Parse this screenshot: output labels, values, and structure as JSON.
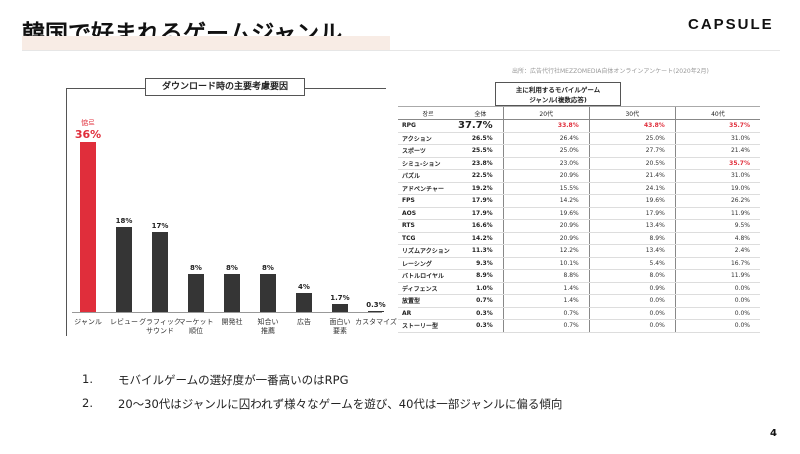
{
  "header": {
    "title": "韓国で好まれるゲームジャンル",
    "logo": "CAPSULE"
  },
  "left_chart": {
    "title": "ダウンロード時の主要考慮要因",
    "top_label": "惦르",
    "accent": "#e02e3b",
    "bar_color": "#353535",
    "chart_data": {
      "type": "bar",
      "title": "ダウンロード時の主要考慮要因",
      "categories": [
        "ジャンル",
        "レビュー",
        "グラフィック\nサウンド",
        "マーケット\n順位",
        "開発社",
        "知合い\n推薦",
        "広告",
        "面白い\n要素",
        "カスタマイズ"
      ],
      "values": [
        36,
        18,
        17,
        8,
        8,
        8,
        4,
        1.7,
        0.3
      ],
      "value_labels": [
        "36%",
        "18%",
        "17%",
        "8%",
        "8%",
        "8%",
        "4%",
        "1.7%",
        "0.3%"
      ],
      "highlight_index": 0,
      "ylim": [
        0,
        36
      ]
    }
  },
  "right_table": {
    "source": "出所：広告代行社MEZZOMEDIA自体オンラインアンケート(2020年2月)",
    "caption_line1": "主に利用するモバイルゲーム",
    "caption_line2": "ジャンル(複数応答)",
    "columns": [
      "장르",
      "全体",
      "20代",
      "30代",
      "40代"
    ],
    "rows": [
      [
        "RPG",
        "37.7%",
        "33.8%",
        "43.8%",
        "35.7%"
      ],
      [
        "アクション",
        "26.5%",
        "26.4%",
        "25.0%",
        "31.0%"
      ],
      [
        "スポーツ",
        "25.5%",
        "25.0%",
        "27.7%",
        "21.4%"
      ],
      [
        "シミュ-ション",
        "23.8%",
        "23.0%",
        "20.5%",
        "35.7%"
      ],
      [
        "パズル",
        "22.5%",
        "20.9%",
        "21.4%",
        "31.0%"
      ],
      [
        "アドベンチャー",
        "19.2%",
        "15.5%",
        "24.1%",
        "19.0%"
      ],
      [
        "FPS",
        "17.9%",
        "14.2%",
        "19.6%",
        "26.2%"
      ],
      [
        "AOS",
        "17.9%",
        "19.6%",
        "17.9%",
        "11.9%"
      ],
      [
        "RTS",
        "16.6%",
        "20.9%",
        "13.4%",
        "9.5%"
      ],
      [
        "TCG",
        "14.2%",
        "20.9%",
        "8.9%",
        "4.8%"
      ],
      [
        "リズムアクション",
        "11.3%",
        "12.2%",
        "13.4%",
        "2.4%"
      ],
      [
        "レーシング",
        "9.3%",
        "10.1%",
        "5.4%",
        "16.7%"
      ],
      [
        "バトルロイヤル",
        "8.9%",
        "8.8%",
        "8.0%",
        "11.9%"
      ],
      [
        "ディフェンス",
        "1.0%",
        "1.4%",
        "0.9%",
        "0.0%"
      ],
      [
        "放置型",
        "0.7%",
        "1.4%",
        "0.0%",
        "0.0%"
      ],
      [
        "AR",
        "0.3%",
        "0.7%",
        "0.0%",
        "0.0%"
      ],
      [
        "ストーリー型",
        "0.3%",
        "0.7%",
        "0.0%",
        "0.0%"
      ]
    ],
    "highlights": [
      [
        0,
        1
      ],
      [
        0,
        2
      ],
      [
        0,
        3
      ],
      [
        0,
        4
      ],
      [
        3,
        4
      ]
    ]
  },
  "notes": [
    {
      "num": "1.",
      "text": "モバイルゲームの選好度が一番高いのはRPG"
    },
    {
      "num": "2.",
      "text": "20〜30代はジャンルに囚われず様々なゲームを遊び、40代は一部ジャンルに偏る傾向"
    }
  ],
  "page_number": "4"
}
